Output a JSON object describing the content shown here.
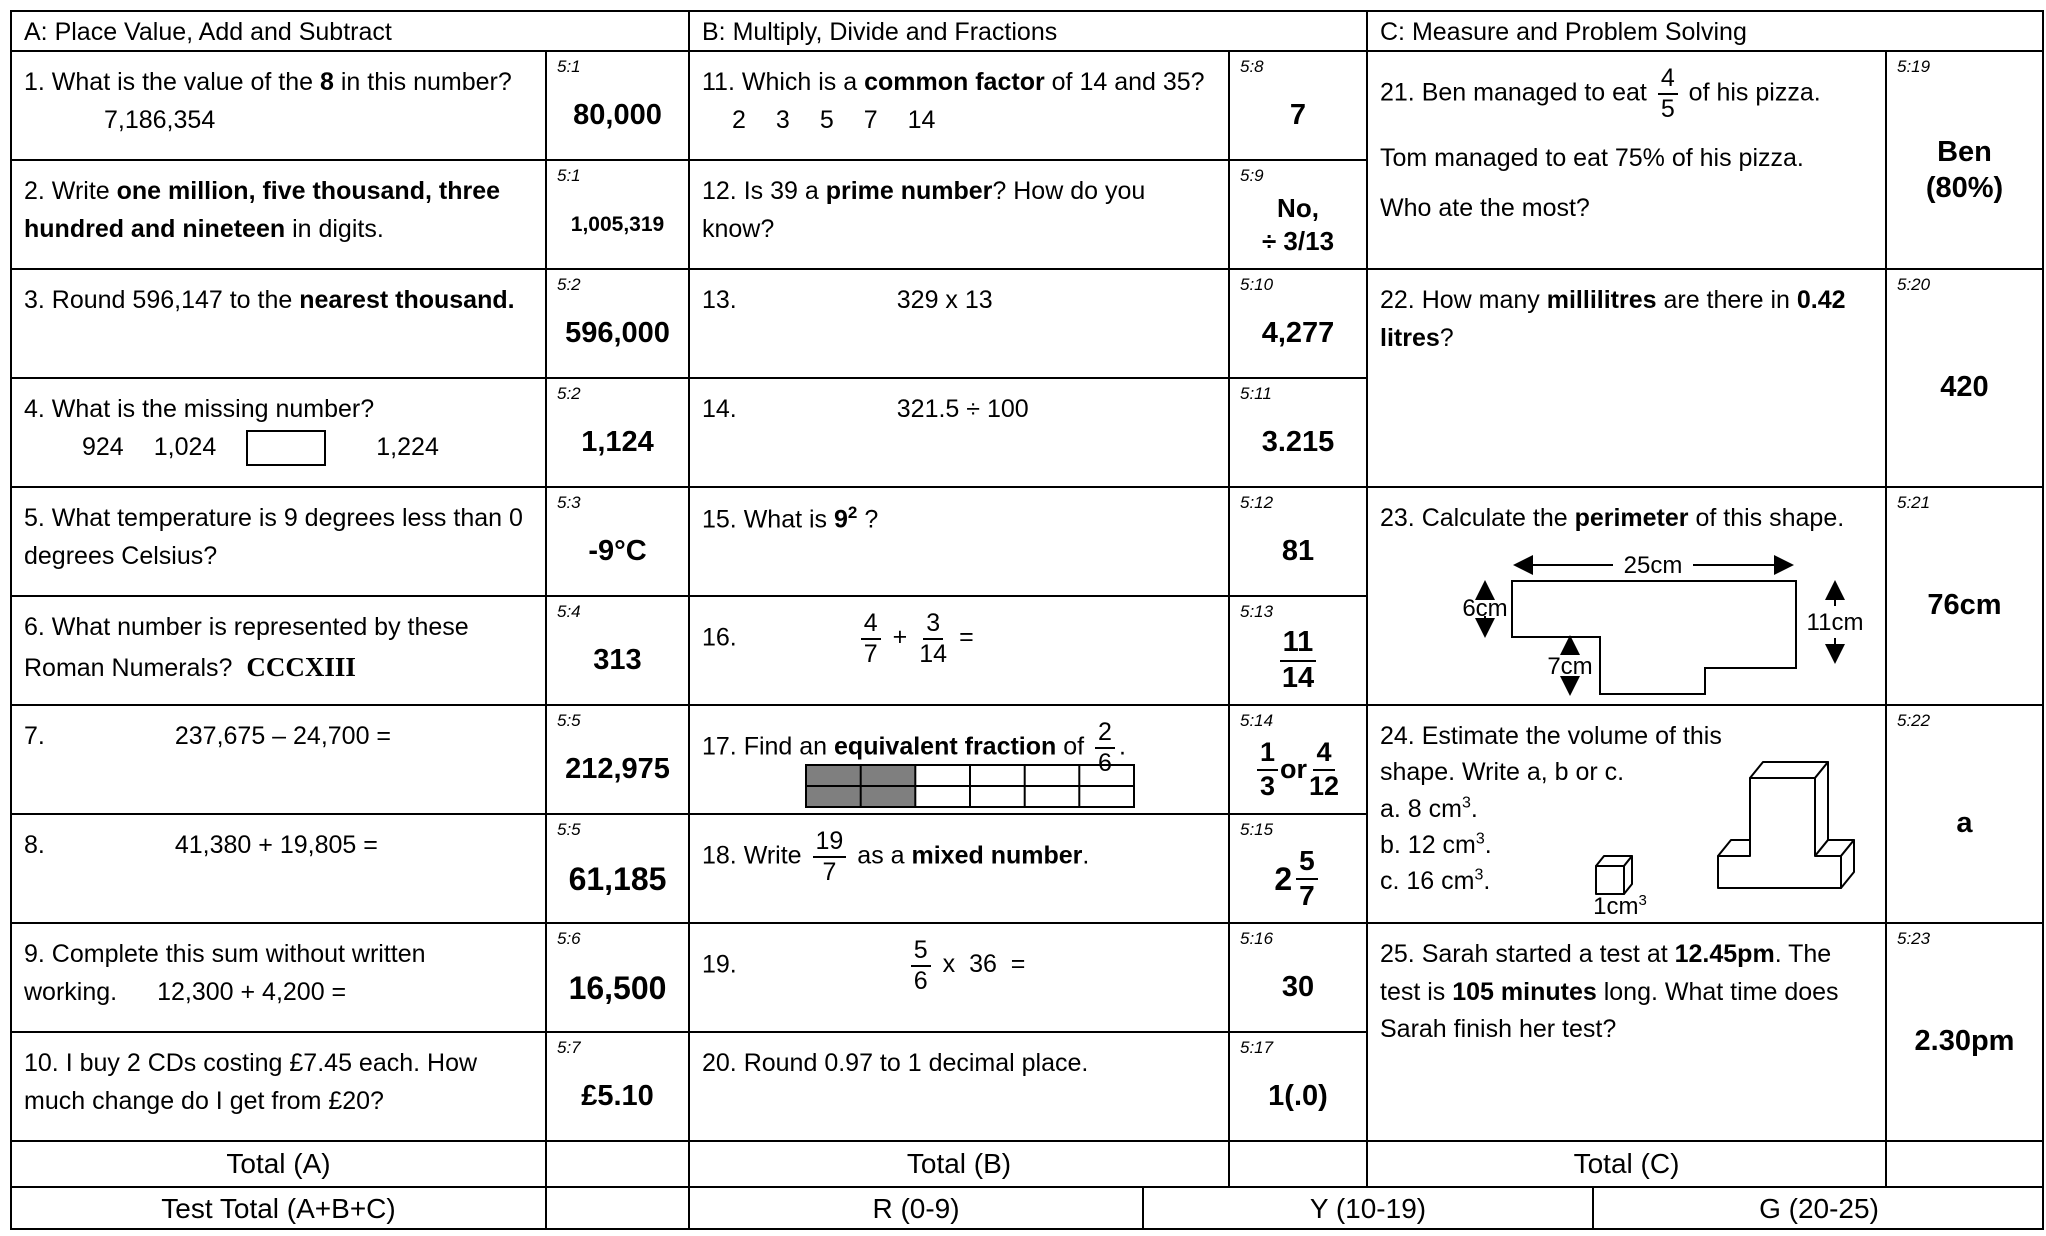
{
  "header": [
    "A: Place Value, Add and Subtract",
    "B: Multiply, Divide and Fractions",
    "C: Measure and Problem Solving"
  ],
  "questions": [
    {
      "text": [
        "1. What is the value of the ",
        "8",
        " in this number?",
        "7,186,354"
      ],
      "code": "5:1",
      "answer": [
        "80,000"
      ]
    },
    {
      "text": [
        "2. Write ",
        "one million, five thousand, three hundred and nineteen",
        " in digits."
      ],
      "code": "5:1",
      "answer": [
        "1,005,319"
      ]
    },
    {
      "text": [
        "3. Round 596,147 to the ",
        "nearest thousand."
      ],
      "code": "5:2",
      "answer": [
        "596,000"
      ]
    },
    {
      "text": [
        "4. What is the missing number?",
        "924",
        "1,024",
        "1,224"
      ],
      "code": "5:2",
      "answer": [
        "1,124"
      ]
    },
    {
      "text": [
        "5. What temperature is 9 degrees less than 0 degrees Celsius?"
      ],
      "code": "5:3",
      "answer": [
        "-9°C"
      ]
    },
    {
      "text": [
        "6. What number is represented by these Roman Numerals?",
        "CCCXIII"
      ],
      "code": "5:4",
      "answer": [
        "313"
      ]
    },
    {
      "text": [
        "7.",
        "237,675 – 24,700 ="
      ],
      "code": "5:5",
      "answer": [
        "212,975"
      ]
    },
    {
      "text": [
        "8.",
        "41,380 + 19,805 ="
      ],
      "code": "5:5",
      "answer": [
        "61,185"
      ]
    },
    {
      "text": [
        "9. Complete this sum without written working.",
        "12,300 + 4,200 ="
      ],
      "code": "5:6",
      "answer": [
        "16,500"
      ]
    },
    {
      "text": [
        "10. I buy 2 CDs costing £7.45 each. How much change do I get from £20?"
      ],
      "code": "5:7",
      "answer": [
        "£5.10"
      ]
    },
    {
      "text": [
        "11. Which is a ",
        "common factor",
        " of 14 and 35?",
        "2",
        "3",
        "5",
        "7",
        "14"
      ],
      "code": "5:8",
      "answer": [
        "7"
      ]
    },
    {
      "text": [
        "12. Is 39 a ",
        "prime number",
        "? How do you know?"
      ],
      "code": "5:9",
      "answer": [
        "No,",
        "÷ 3/13"
      ]
    },
    {
      "text": [
        "13.",
        "329 x 13"
      ],
      "code": "5:10",
      "answer": [
        "4,277"
      ]
    },
    {
      "text": [
        "14.",
        "321.5 ÷ 100"
      ],
      "code": "5:11",
      "answer": [
        "3.215"
      ]
    },
    {
      "text": [
        "15. What is ",
        "9",
        "2",
        " ?"
      ],
      "code": "5:12",
      "answer": [
        "81"
      ]
    },
    {
      "text": [
        "16.",
        "4",
        "7",
        "+",
        "3",
        "14",
        "="
      ],
      "code": "5:13",
      "answer": [
        "11",
        "14"
      ]
    },
    {
      "text": [
        "17. Find an ",
        "equivalent fraction",
        " of ",
        "2",
        "6",
        "."
      ],
      "code": "5:14",
      "answer": [
        "1",
        "3",
        "or",
        "4",
        "12"
      ]
    },
    {
      "text": [
        "18. Write ",
        "19",
        "7",
        " as a ",
        "mixed number",
        "."
      ],
      "code": "5:15",
      "answer": [
        "2",
        "5",
        "7"
      ]
    },
    {
      "text": [
        "19.",
        "5",
        "6",
        "x  36  ="
      ],
      "code": "5:16",
      "answer": [
        "30"
      ]
    },
    {
      "text": [
        "20. Round 0.97 to 1 decimal place."
      ],
      "code": "5:17",
      "answer": [
        "1(.0)"
      ]
    },
    {
      "text": [
        "21. Ben managed to eat ",
        "4",
        "5",
        " of his pizza.",
        "Tom managed to eat 75% of his pizza.",
        "Who ate the most?"
      ],
      "code": "5:19",
      "answer": [
        "Ben",
        "(80%)"
      ]
    },
    {
      "text": [
        "22. How many ",
        "millilitres",
        " are there in ",
        "0.42 litres",
        "?"
      ],
      "code": "5:20",
      "answer": [
        "420"
      ]
    },
    {
      "text": [
        "23. Calculate the ",
        "perimeter",
        " of this shape.",
        "25cm",
        "6cm",
        "11cm",
        "7cm"
      ],
      "code": "5:21",
      "answer": [
        "76cm"
      ]
    },
    {
      "text": [
        "24. Estimate the volume of this shape.  Write a, b or c.",
        "a. 8 cm",
        "3",
        ".",
        "b. 12 cm",
        "3",
        ".",
        "c. 16 cm",
        "3",
        ".",
        "1cm",
        "3"
      ],
      "code": "5:22",
      "answer": [
        "a"
      ]
    },
    {
      "text": [
        "25. Sarah started a test at ",
        "12.45pm",
        ". The test is ",
        "105 minutes",
        " long. What time does Sarah finish her test?"
      ],
      "code": "5:23",
      "answer": [
        "2.30pm"
      ]
    }
  ],
  "totals": [
    "Total (A)",
    "Total (B)",
    "Total (C)"
  ],
  "footer": [
    "Test Total (A+B+C)",
    "R (0-9)",
    "Y (10-19)",
    "G (20-25)"
  ]
}
